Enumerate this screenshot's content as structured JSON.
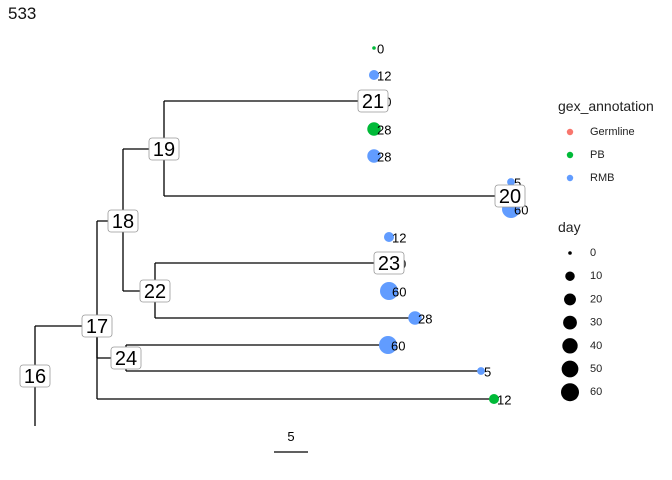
{
  "title": "533",
  "colors": {
    "Germline": "#F8766D",
    "PB": "#00BA38",
    "RMB": "#619CFF"
  },
  "tree": {
    "internal_nodes": [
      "16",
      "17",
      "18",
      "19",
      "20",
      "22",
      "23",
      "24",
      "21"
    ],
    "tips": [
      {
        "label": "0",
        "annotation": "PB",
        "day": 0
      },
      {
        "label": "12",
        "annotation": "RMB",
        "day": 12
      },
      {
        "label": "60",
        "annotation": "PB",
        "day": 60
      },
      {
        "label": "28",
        "annotation": "PB",
        "day": 28
      },
      {
        "label": "28",
        "annotation": "RMB",
        "day": 28
      },
      {
        "label": "5",
        "annotation": "RMB",
        "day": 5
      },
      {
        "label": "60",
        "annotation": "RMB",
        "day": 60
      },
      {
        "label": "12",
        "annotation": "RMB",
        "day": 12
      },
      {
        "label": "0",
        "annotation": "RMB",
        "day": 0
      },
      {
        "label": "60",
        "annotation": "RMB",
        "day": 60
      },
      {
        "label": "28",
        "annotation": "RMB",
        "day": 28
      },
      {
        "label": "60",
        "annotation": "RMB",
        "day": 60
      },
      {
        "label": "5",
        "annotation": "RMB",
        "day": 5
      },
      {
        "label": "12",
        "annotation": "PB",
        "day": 12
      }
    ]
  },
  "scale_bar": {
    "label": "5"
  },
  "legend": {
    "annotation_title": "gex_annotation",
    "annotation_items": [
      "Germline",
      "PB",
      "RMB"
    ],
    "day_title": "day",
    "day_items": [
      "0",
      "10",
      "20",
      "30",
      "40",
      "50",
      "60"
    ]
  }
}
